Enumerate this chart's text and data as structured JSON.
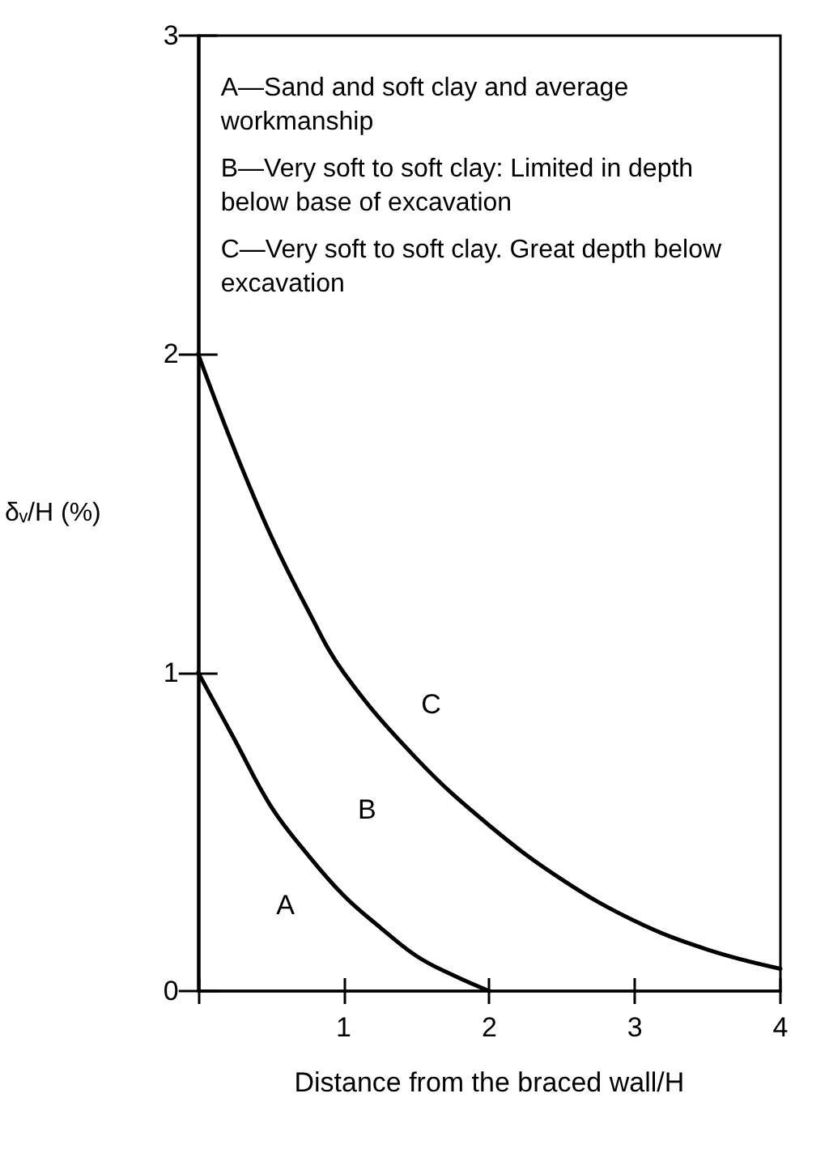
{
  "chart_data": {
    "type": "line",
    "xlabel": "Distance from the braced wall/H",
    "ylabel": "δᵥ/H (%)",
    "series": [
      {
        "color": "#000000",
        "x": [
          0,
          0.25,
          0.5,
          0.75,
          1,
          1.25,
          1.5,
          1.75,
          2
        ],
        "values": [
          1,
          0.79,
          0.58,
          0.43,
          0.3,
          0.2,
          0.11,
          0.05,
          0
        ]
      },
      {
        "color": "#000000",
        "x": [
          0,
          0.25,
          0.5,
          0.75,
          1,
          1.5,
          2,
          2.5,
          3,
          3.5,
          4
        ],
        "values": [
          2,
          1.7,
          1.43,
          1.2,
          1.0,
          0.73,
          0.52,
          0.35,
          0.22,
          0.13,
          0.07
        ]
      }
    ],
    "xlim": [
      0,
      4
    ],
    "xticks": [
      {
        "value": 0,
        "label": null
      },
      1,
      2,
      3,
      4
    ],
    "ylim": [
      0,
      3
    ],
    "yticks": [
      0,
      1,
      2,
      3
    ],
    "marker": "none",
    "line_style": "solid",
    "grid": false,
    "annotations": [
      "A—Sand and soft clay and average workmanship",
      "B—Very soft to soft clay: Limited in depth below base of excavation",
      "C—Very soft to soft clay. Great depth below excavation",
      "A",
      "B",
      "C"
    ]
  }
}
